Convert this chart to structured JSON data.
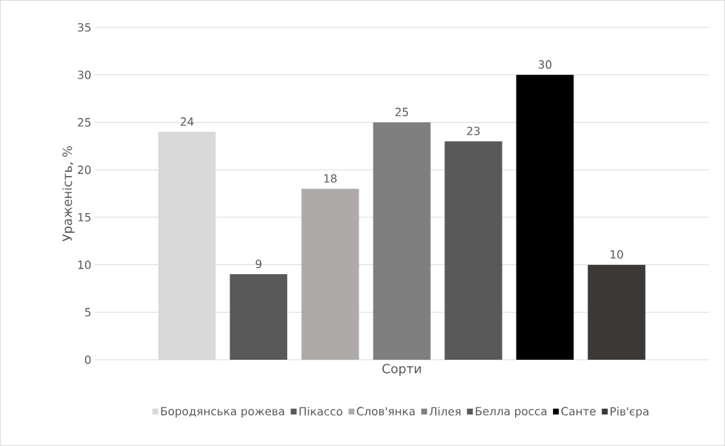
{
  "chart_data": {
    "type": "bar",
    "xlabel": "Сорти",
    "ylabel": "Ураженість, %",
    "categories": [
      null
    ],
    "series": [
      {
        "name": "Бородянська рожева",
        "color": "#d9d9d9",
        "values": [
          24
        ]
      },
      {
        "name": "Пікассо",
        "color": "#595959",
        "values": [
          9
        ]
      },
      {
        "name": "Слов'янка",
        "color": "#aeaaaa",
        "values": [
          18
        ]
      },
      {
        "name": "Лілея",
        "color": "#7f7f7f",
        "values": [
          25
        ]
      },
      {
        "name": "Белла росса",
        "color": "#595959",
        "values": [
          23
        ]
      },
      {
        "name": "Санте",
        "color": "#000000",
        "values": [
          30
        ]
      },
      {
        "name": "Рів'єра",
        "color": "#3b3838",
        "values": [
          10
        ]
      }
    ],
    "ylim": [
      0,
      35
    ],
    "yticks": [
      0,
      5,
      10,
      15,
      20,
      25,
      30,
      35
    ],
    "grid": "y",
    "legend": "bottom",
    "data_labels": true
  }
}
